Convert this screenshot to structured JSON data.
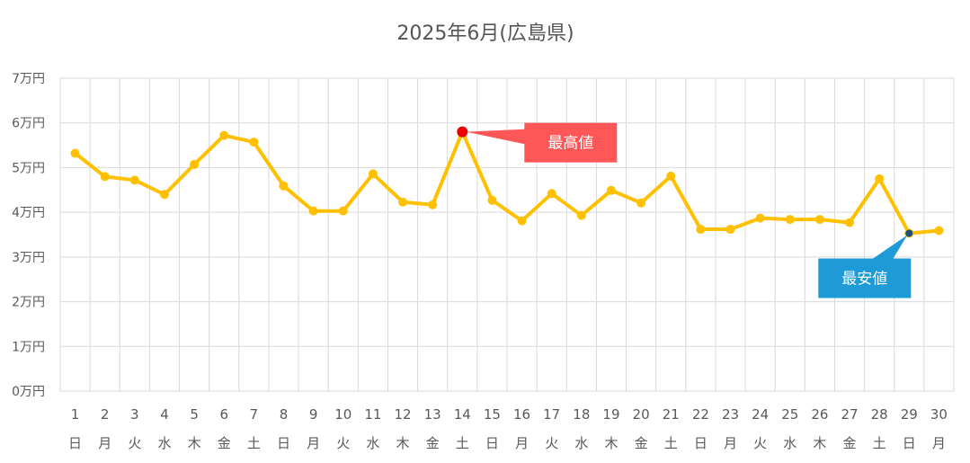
{
  "chart_data": {
    "type": "line",
    "title": "2025年6月(広島県)",
    "xlabel": "",
    "ylabel": "",
    "ylim": [
      0,
      70000
    ],
    "yticks": [
      {
        "value": 0,
        "label": "0万円"
      },
      {
        "value": 10000,
        "label": "1万円"
      },
      {
        "value": 20000,
        "label": "2万円"
      },
      {
        "value": 30000,
        "label": "3万円"
      },
      {
        "value": 40000,
        "label": "4万円"
      },
      {
        "value": 50000,
        "label": "5万円"
      },
      {
        "value": 60000,
        "label": "6万円"
      },
      {
        "value": 70000,
        "label": "7万円"
      }
    ],
    "days": [
      "1",
      "2",
      "3",
      "4",
      "5",
      "6",
      "7",
      "8",
      "9",
      "10",
      "11",
      "12",
      "13",
      "14",
      "15",
      "16",
      "17",
      "18",
      "19",
      "20",
      "21",
      "22",
      "23",
      "24",
      "25",
      "26",
      "27",
      "28",
      "29",
      "30"
    ],
    "weekdays": [
      "日",
      "月",
      "火",
      "水",
      "木",
      "金",
      "土",
      "日",
      "月",
      "火",
      "水",
      "木",
      "金",
      "土",
      "日",
      "月",
      "火",
      "水",
      "木",
      "金",
      "土",
      "日",
      "月",
      "火",
      "水",
      "木",
      "金",
      "土",
      "日",
      "月"
    ],
    "series": [
      {
        "values": [
          53200,
          48000,
          47200,
          44000,
          50700,
          57200,
          55700,
          45900,
          40300,
          40300,
          48600,
          42300,
          41700,
          58000,
          42700,
          38100,
          44200,
          39300,
          44900,
          42100,
          48100,
          36200,
          36200,
          38700,
          38400,
          38400,
          37700,
          47500,
          35300,
          35900
        ],
        "color": "#ffc000"
      }
    ],
    "annotations": [
      {
        "label": "最高値",
        "day_index": 13,
        "color": "#ff5757",
        "marker_color": "#ee0000"
      },
      {
        "label": "最安値",
        "day_index": 28,
        "color": "#1e9ad6",
        "marker_color": "#1f4e79"
      }
    ],
    "grid": true,
    "legend": "none"
  }
}
